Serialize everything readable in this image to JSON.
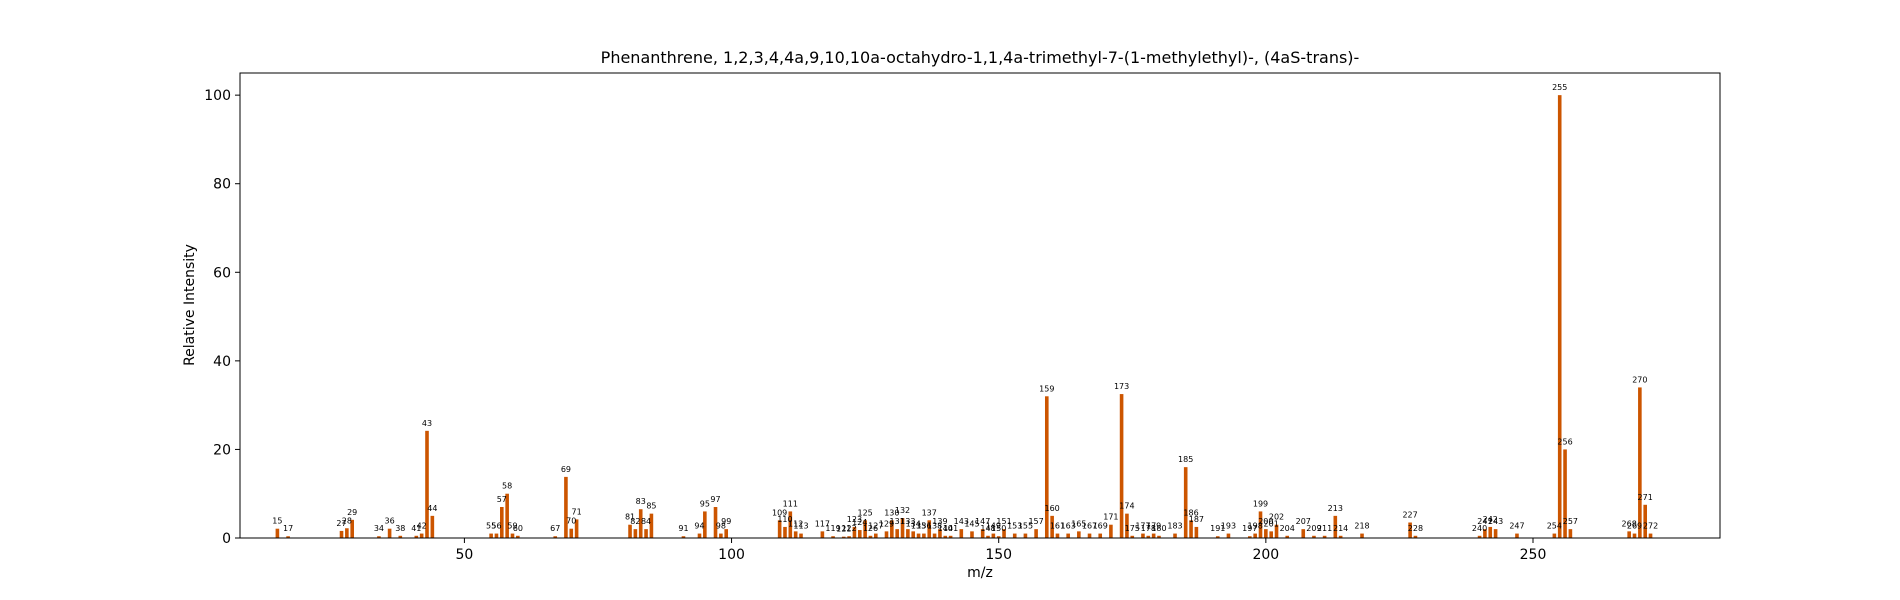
{
  "chart_data": {
    "type": "bar",
    "title": "Phenanthrene, 1,2,3,4,4a,9,10,10a-octahydro-1,1,4a-trimethyl-7-(1-methylethyl)-, (4aS-trans)-",
    "xlabel": "m/z",
    "ylabel": "Relative Intensity",
    "xlim": [
      8,
      285
    ],
    "ylim": [
      0,
      105
    ],
    "xticks": [
      50,
      100,
      150,
      200,
      250
    ],
    "yticks": [
      0,
      20,
      40,
      60,
      80,
      100
    ],
    "bar_color": "#cc5500",
    "grid": false,
    "peaks": [
      {
        "mz": 15,
        "intensity": 2.1
      },
      {
        "mz": 17,
        "intensity": 0.4
      },
      {
        "mz": 27,
        "intensity": 1.6
      },
      {
        "mz": 28,
        "intensity": 2.2
      },
      {
        "mz": 29,
        "intensity": 4.1
      },
      {
        "mz": 34,
        "intensity": 0.4
      },
      {
        "mz": 36,
        "intensity": 2.1
      },
      {
        "mz": 38,
        "intensity": 0.5
      },
      {
        "mz": 41,
        "intensity": 0.5
      },
      {
        "mz": 42,
        "intensity": 1.0
      },
      {
        "mz": 43,
        "intensity": 24.2
      },
      {
        "mz": 44,
        "intensity": 5.0
      },
      {
        "mz": 55,
        "intensity": 1.0
      },
      {
        "mz": 56,
        "intensity": 1.0
      },
      {
        "mz": 57,
        "intensity": 7.0
      },
      {
        "mz": 58,
        "intensity": 10.0
      },
      {
        "mz": 59,
        "intensity": 1.0
      },
      {
        "mz": 60,
        "intensity": 0.5
      },
      {
        "mz": 67,
        "intensity": 0.4
      },
      {
        "mz": 69,
        "intensity": 13.8
      },
      {
        "mz": 70,
        "intensity": 2.1
      },
      {
        "mz": 71,
        "intensity": 4.2
      },
      {
        "mz": 81,
        "intensity": 3.0
      },
      {
        "mz": 82,
        "intensity": 2.0
      },
      {
        "mz": 83,
        "intensity": 6.5
      },
      {
        "mz": 84,
        "intensity": 2.0
      },
      {
        "mz": 85,
        "intensity": 5.5
      },
      {
        "mz": 91,
        "intensity": 0.4
      },
      {
        "mz": 94,
        "intensity": 1.0
      },
      {
        "mz": 95,
        "intensity": 6.0
      },
      {
        "mz": 97,
        "intensity": 7.0
      },
      {
        "mz": 98,
        "intensity": 1.0
      },
      {
        "mz": 99,
        "intensity": 2.0
      },
      {
        "mz": 109,
        "intensity": 4.0
      },
      {
        "mz": 110,
        "intensity": 2.5
      },
      {
        "mz": 111,
        "intensity": 6.0
      },
      {
        "mz": 112,
        "intensity": 1.5
      },
      {
        "mz": 113,
        "intensity": 1.0
      },
      {
        "mz": 117,
        "intensity": 1.5
      },
      {
        "mz": 119,
        "intensity": 0.4
      },
      {
        "mz": 121,
        "intensity": 0.3
      },
      {
        "mz": 122,
        "intensity": 0.4
      },
      {
        "mz": 123,
        "intensity": 2.5
      },
      {
        "mz": 124,
        "intensity": 1.8
      },
      {
        "mz": 125,
        "intensity": 4.0
      },
      {
        "mz": 126,
        "intensity": 0.5
      },
      {
        "mz": 127,
        "intensity": 1.0
      },
      {
        "mz": 129,
        "intensity": 1.5
      },
      {
        "mz": 130,
        "intensity": 4.0
      },
      {
        "mz": 131,
        "intensity": 2.0
      },
      {
        "mz": 132,
        "intensity": 4.5
      },
      {
        "mz": 133,
        "intensity": 2.0
      },
      {
        "mz": 134,
        "intensity": 1.5
      },
      {
        "mz": 135,
        "intensity": 1.0
      },
      {
        "mz": 136,
        "intensity": 1.0
      },
      {
        "mz": 137,
        "intensity": 4.0
      },
      {
        "mz": 138,
        "intensity": 1.0
      },
      {
        "mz": 139,
        "intensity": 2.0
      },
      {
        "mz": 140,
        "intensity": 0.5
      },
      {
        "mz": 141,
        "intensity": 0.5
      },
      {
        "mz": 143,
        "intensity": 2.0
      },
      {
        "mz": 145,
        "intensity": 1.5
      },
      {
        "mz": 147,
        "intensity": 2.0
      },
      {
        "mz": 148,
        "intensity": 0.5
      },
      {
        "mz": 149,
        "intensity": 1.0
      },
      {
        "mz": 150,
        "intensity": 0.4
      },
      {
        "mz": 151,
        "intensity": 2.0
      },
      {
        "mz": 153,
        "intensity": 1.0
      },
      {
        "mz": 155,
        "intensity": 1.0
      },
      {
        "mz": 157,
        "intensity": 2.0
      },
      {
        "mz": 159,
        "intensity": 32.0
      },
      {
        "mz": 160,
        "intensity": 5.0
      },
      {
        "mz": 161,
        "intensity": 1.0
      },
      {
        "mz": 163,
        "intensity": 1.0
      },
      {
        "mz": 165,
        "intensity": 1.5
      },
      {
        "mz": 167,
        "intensity": 1.0
      },
      {
        "mz": 169,
        "intensity": 1.0
      },
      {
        "mz": 171,
        "intensity": 3.0
      },
      {
        "mz": 173,
        "intensity": 32.5
      },
      {
        "mz": 174,
        "intensity": 5.5
      },
      {
        "mz": 175,
        "intensity": 0.5
      },
      {
        "mz": 177,
        "intensity": 1.0
      },
      {
        "mz": 178,
        "intensity": 0.5
      },
      {
        "mz": 179,
        "intensity": 1.0
      },
      {
        "mz": 180,
        "intensity": 0.5
      },
      {
        "mz": 183,
        "intensity": 1.0
      },
      {
        "mz": 185,
        "intensity": 16.0
      },
      {
        "mz": 186,
        "intensity": 4.0
      },
      {
        "mz": 187,
        "intensity": 2.5
      },
      {
        "mz": 191,
        "intensity": 0.4
      },
      {
        "mz": 193,
        "intensity": 1.0
      },
      {
        "mz": 197,
        "intensity": 0.4
      },
      {
        "mz": 198,
        "intensity": 1.0
      },
      {
        "mz": 199,
        "intensity": 6.0
      },
      {
        "mz": 200,
        "intensity": 2.0
      },
      {
        "mz": 201,
        "intensity": 1.5
      },
      {
        "mz": 202,
        "intensity": 3.0
      },
      {
        "mz": 204,
        "intensity": 0.5
      },
      {
        "mz": 207,
        "intensity": 2.0
      },
      {
        "mz": 209,
        "intensity": 0.5
      },
      {
        "mz": 211,
        "intensity": 0.5
      },
      {
        "mz": 213,
        "intensity": 5.0
      },
      {
        "mz": 214,
        "intensity": 0.5
      },
      {
        "mz": 218,
        "intensity": 1.0
      },
      {
        "mz": 227,
        "intensity": 3.5
      },
      {
        "mz": 228,
        "intensity": 0.5
      },
      {
        "mz": 240,
        "intensity": 0.5
      },
      {
        "mz": 241,
        "intensity": 2.0
      },
      {
        "mz": 242,
        "intensity": 2.5
      },
      {
        "mz": 243,
        "intensity": 2.0
      },
      {
        "mz": 247,
        "intensity": 1.0
      },
      {
        "mz": 254,
        "intensity": 1.0
      },
      {
        "mz": 255,
        "intensity": 100.0
      },
      {
        "mz": 256,
        "intensity": 20.0
      },
      {
        "mz": 257,
        "intensity": 2.0
      },
      {
        "mz": 268,
        "intensity": 1.5
      },
      {
        "mz": 269,
        "intensity": 1.0
      },
      {
        "mz": 270,
        "intensity": 34.0
      },
      {
        "mz": 271,
        "intensity": 7.5
      },
      {
        "mz": 272,
        "intensity": 1.0
      }
    ]
  }
}
